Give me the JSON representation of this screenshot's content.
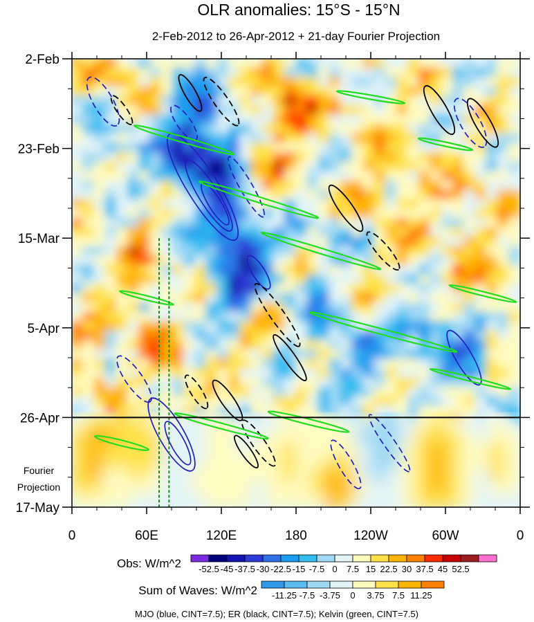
{
  "chart_data": {
    "type": "heatmap",
    "title": "OLR anomalies: 15°S - 15°N",
    "subtitle": "2-Feb-2012 to 26-Apr-2012 + 21-day Fourier Projection",
    "x_ticks": [
      {
        "lon": 0,
        "label": "0"
      },
      {
        "lon": 60,
        "label": "60E"
      },
      {
        "lon": 120,
        "label": "120E"
      },
      {
        "lon": 180,
        "label": "180"
      },
      {
        "lon": 240,
        "label": "120W"
      },
      {
        "lon": 300,
        "label": "60W"
      },
      {
        "lon": 360,
        "label": "0"
      }
    ],
    "y_ticks": [
      {
        "day": 0,
        "label": "2-Feb"
      },
      {
        "day": 21,
        "label": "23-Feb"
      },
      {
        "day": 42,
        "label": "15-Mar"
      },
      {
        "day": 63,
        "label": "5-Apr"
      },
      {
        "day": 84,
        "label": "26-Apr"
      },
      {
        "day": 105,
        "label": "17-May"
      }
    ],
    "xlim": [
      0,
      360
    ],
    "ylim_days": [
      0,
      105
    ],
    "observation_end_day": 84,
    "projection_label_line1": "Fourier",
    "projection_label_line2": "Projection",
    "obs_colorbar": {
      "label": "Obs: W/m^2",
      "levels": [
        "-52.5",
        "-45",
        "-37.5",
        "-30",
        "-22.5",
        "-15",
        "-7.5",
        "0",
        "7.5",
        "15",
        "22.5",
        "30",
        "37.5",
        "45",
        "52.5"
      ],
      "colors": [
        "#7a2be2",
        "#00007f",
        "#1414b0",
        "#2e3bd6",
        "#2f72e6",
        "#1a9cef",
        "#35bdf2",
        "#9fd9f4",
        "#e3f4f7",
        "#fffbbf",
        "#ffe24a",
        "#ffb400",
        "#ff8000",
        "#ff2a00",
        "#c80000",
        "#9c1e1e",
        "#ff70d0"
      ]
    },
    "waves_colorbar": {
      "label": "Sum of Waves: W/m^2",
      "levels": [
        "-11.25",
        "-7.5",
        "-3.75",
        "0",
        "3.75",
        "7.5",
        "11.25"
      ],
      "colors": [
        "#2f9ae8",
        "#5bbcf2",
        "#9fd9f4",
        "#e3f4f7",
        "#fffbbf",
        "#ffe24a",
        "#ffb400",
        "#ff8000"
      ]
    },
    "contour_legend": "MJO (blue, CINT=7.5); ER (black, CINT=7.5); Kelvin (green, CINT=7.5)",
    "series": [
      {
        "name": "MJO",
        "color": "#1f1fc0"
      },
      {
        "name": "ER",
        "color": "#000000"
      },
      {
        "name": "Kelvin",
        "color": "#22dd22"
      }
    ],
    "reference_lines_lon": [
      70,
      78
    ],
    "grid": false
  }
}
